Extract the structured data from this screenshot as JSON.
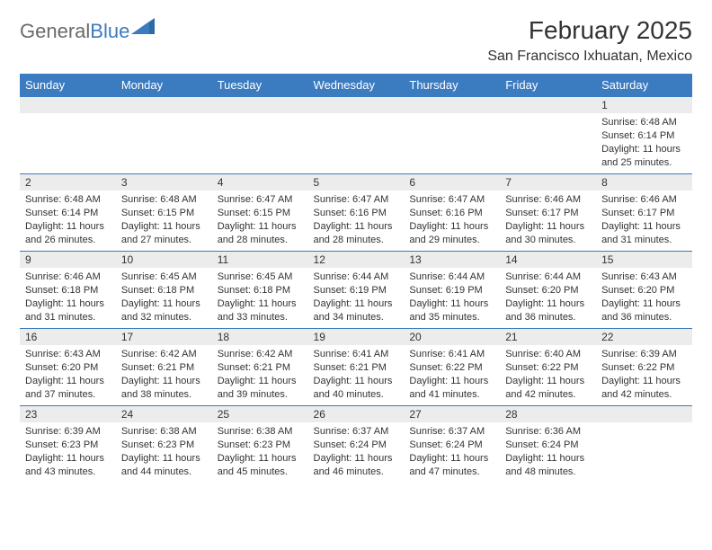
{
  "logo": {
    "text1": "General",
    "text2": "Blue"
  },
  "title": "February 2025",
  "location": "San Francisco Ixhuatan, Mexico",
  "colors": {
    "header_bg": "#3b7bbf",
    "header_text": "#ffffff",
    "daynum_bg": "#ececec",
    "border": "#3b7bbf",
    "logo_gray": "#6a6a6a",
    "logo_blue": "#3b7bbf"
  },
  "weekdays": [
    "Sunday",
    "Monday",
    "Tuesday",
    "Wednesday",
    "Thursday",
    "Friday",
    "Saturday"
  ],
  "weeks": [
    [
      {
        "n": "",
        "sr": "",
        "ss": "",
        "dl": ""
      },
      {
        "n": "",
        "sr": "",
        "ss": "",
        "dl": ""
      },
      {
        "n": "",
        "sr": "",
        "ss": "",
        "dl": ""
      },
      {
        "n": "",
        "sr": "",
        "ss": "",
        "dl": ""
      },
      {
        "n": "",
        "sr": "",
        "ss": "",
        "dl": ""
      },
      {
        "n": "",
        "sr": "",
        "ss": "",
        "dl": ""
      },
      {
        "n": "1",
        "sr": "Sunrise: 6:48 AM",
        "ss": "Sunset: 6:14 PM",
        "dl": "Daylight: 11 hours and 25 minutes."
      }
    ],
    [
      {
        "n": "2",
        "sr": "Sunrise: 6:48 AM",
        "ss": "Sunset: 6:14 PM",
        "dl": "Daylight: 11 hours and 26 minutes."
      },
      {
        "n": "3",
        "sr": "Sunrise: 6:48 AM",
        "ss": "Sunset: 6:15 PM",
        "dl": "Daylight: 11 hours and 27 minutes."
      },
      {
        "n": "4",
        "sr": "Sunrise: 6:47 AM",
        "ss": "Sunset: 6:15 PM",
        "dl": "Daylight: 11 hours and 28 minutes."
      },
      {
        "n": "5",
        "sr": "Sunrise: 6:47 AM",
        "ss": "Sunset: 6:16 PM",
        "dl": "Daylight: 11 hours and 28 minutes."
      },
      {
        "n": "6",
        "sr": "Sunrise: 6:47 AM",
        "ss": "Sunset: 6:16 PM",
        "dl": "Daylight: 11 hours and 29 minutes."
      },
      {
        "n": "7",
        "sr": "Sunrise: 6:46 AM",
        "ss": "Sunset: 6:17 PM",
        "dl": "Daylight: 11 hours and 30 minutes."
      },
      {
        "n": "8",
        "sr": "Sunrise: 6:46 AM",
        "ss": "Sunset: 6:17 PM",
        "dl": "Daylight: 11 hours and 31 minutes."
      }
    ],
    [
      {
        "n": "9",
        "sr": "Sunrise: 6:46 AM",
        "ss": "Sunset: 6:18 PM",
        "dl": "Daylight: 11 hours and 31 minutes."
      },
      {
        "n": "10",
        "sr": "Sunrise: 6:45 AM",
        "ss": "Sunset: 6:18 PM",
        "dl": "Daylight: 11 hours and 32 minutes."
      },
      {
        "n": "11",
        "sr": "Sunrise: 6:45 AM",
        "ss": "Sunset: 6:18 PM",
        "dl": "Daylight: 11 hours and 33 minutes."
      },
      {
        "n": "12",
        "sr": "Sunrise: 6:44 AM",
        "ss": "Sunset: 6:19 PM",
        "dl": "Daylight: 11 hours and 34 minutes."
      },
      {
        "n": "13",
        "sr": "Sunrise: 6:44 AM",
        "ss": "Sunset: 6:19 PM",
        "dl": "Daylight: 11 hours and 35 minutes."
      },
      {
        "n": "14",
        "sr": "Sunrise: 6:44 AM",
        "ss": "Sunset: 6:20 PM",
        "dl": "Daylight: 11 hours and 36 minutes."
      },
      {
        "n": "15",
        "sr": "Sunrise: 6:43 AM",
        "ss": "Sunset: 6:20 PM",
        "dl": "Daylight: 11 hours and 36 minutes."
      }
    ],
    [
      {
        "n": "16",
        "sr": "Sunrise: 6:43 AM",
        "ss": "Sunset: 6:20 PM",
        "dl": "Daylight: 11 hours and 37 minutes."
      },
      {
        "n": "17",
        "sr": "Sunrise: 6:42 AM",
        "ss": "Sunset: 6:21 PM",
        "dl": "Daylight: 11 hours and 38 minutes."
      },
      {
        "n": "18",
        "sr": "Sunrise: 6:42 AM",
        "ss": "Sunset: 6:21 PM",
        "dl": "Daylight: 11 hours and 39 minutes."
      },
      {
        "n": "19",
        "sr": "Sunrise: 6:41 AM",
        "ss": "Sunset: 6:21 PM",
        "dl": "Daylight: 11 hours and 40 minutes."
      },
      {
        "n": "20",
        "sr": "Sunrise: 6:41 AM",
        "ss": "Sunset: 6:22 PM",
        "dl": "Daylight: 11 hours and 41 minutes."
      },
      {
        "n": "21",
        "sr": "Sunrise: 6:40 AM",
        "ss": "Sunset: 6:22 PM",
        "dl": "Daylight: 11 hours and 42 minutes."
      },
      {
        "n": "22",
        "sr": "Sunrise: 6:39 AM",
        "ss": "Sunset: 6:22 PM",
        "dl": "Daylight: 11 hours and 42 minutes."
      }
    ],
    [
      {
        "n": "23",
        "sr": "Sunrise: 6:39 AM",
        "ss": "Sunset: 6:23 PM",
        "dl": "Daylight: 11 hours and 43 minutes."
      },
      {
        "n": "24",
        "sr": "Sunrise: 6:38 AM",
        "ss": "Sunset: 6:23 PM",
        "dl": "Daylight: 11 hours and 44 minutes."
      },
      {
        "n": "25",
        "sr": "Sunrise: 6:38 AM",
        "ss": "Sunset: 6:23 PM",
        "dl": "Daylight: 11 hours and 45 minutes."
      },
      {
        "n": "26",
        "sr": "Sunrise: 6:37 AM",
        "ss": "Sunset: 6:24 PM",
        "dl": "Daylight: 11 hours and 46 minutes."
      },
      {
        "n": "27",
        "sr": "Sunrise: 6:37 AM",
        "ss": "Sunset: 6:24 PM",
        "dl": "Daylight: 11 hours and 47 minutes."
      },
      {
        "n": "28",
        "sr": "Sunrise: 6:36 AM",
        "ss": "Sunset: 6:24 PM",
        "dl": "Daylight: 11 hours and 48 minutes."
      },
      {
        "n": "",
        "sr": "",
        "ss": "",
        "dl": ""
      }
    ]
  ]
}
